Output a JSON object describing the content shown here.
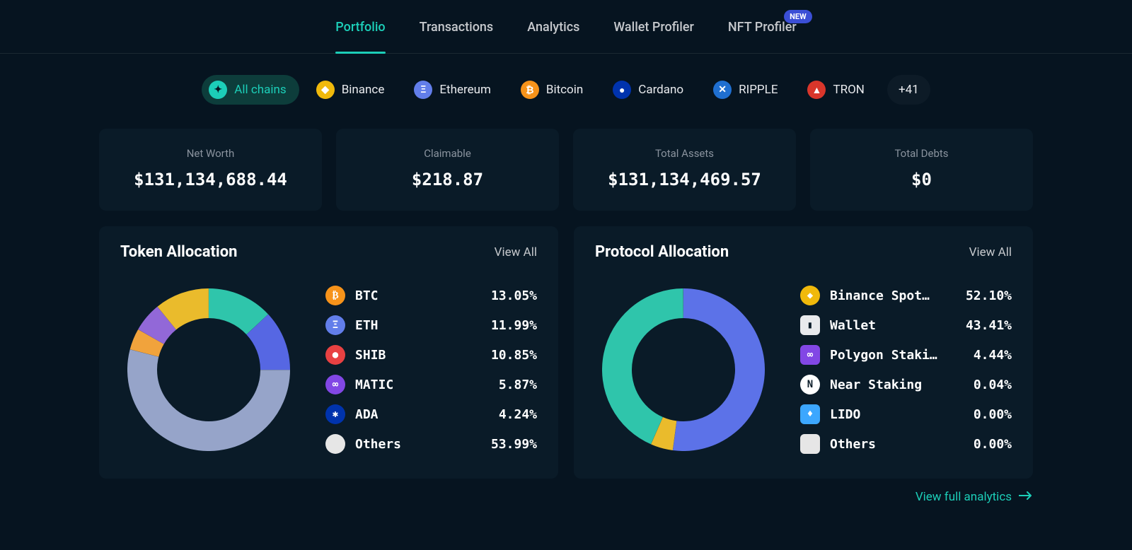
{
  "nav": {
    "tabs": [
      {
        "label": "Portfolio",
        "active": true
      },
      {
        "label": "Transactions",
        "active": false
      },
      {
        "label": "Analytics",
        "active": false
      },
      {
        "label": "Wallet Profiler",
        "active": false
      },
      {
        "label": "NFT Profiler",
        "active": false,
        "badge": "NEW"
      }
    ]
  },
  "chains": {
    "items": [
      {
        "label": "All chains",
        "active": true,
        "icon_bg": "#1cceb8",
        "icon_fg": "#061420",
        "glyph": "✦"
      },
      {
        "label": "Binance",
        "icon_bg": "#f0b90b",
        "icon_fg": "#ffffff",
        "glyph": "◆"
      },
      {
        "label": "Ethereum",
        "icon_bg": "#627eea",
        "icon_fg": "#ffffff",
        "glyph": "Ξ"
      },
      {
        "label": "Bitcoin",
        "icon_bg": "#f7931a",
        "icon_fg": "#ffffff",
        "glyph": "₿"
      },
      {
        "label": "Cardano",
        "icon_bg": "#0033ad",
        "icon_fg": "#ffffff",
        "glyph": "●"
      },
      {
        "label": "RIPPLE",
        "icon_bg": "#1f6fd0",
        "icon_fg": "#ffffff",
        "glyph": "✕"
      },
      {
        "label": "TRON",
        "icon_bg": "#d9362b",
        "icon_fg": "#ffffff",
        "glyph": "▲"
      }
    ],
    "more_label": "+41"
  },
  "stats": [
    {
      "label": "Net Worth",
      "value": "$131,134,688.44"
    },
    {
      "label": "Claimable",
      "value": "$218.87"
    },
    {
      "label": "Total Assets",
      "value": "$131,134,469.57"
    },
    {
      "label": "Total Debts",
      "value": "$0"
    }
  ],
  "token_allocation": {
    "title": "Token Allocation",
    "view_all": "View All",
    "donut": {
      "type": "donut",
      "size": 230,
      "thickness": 42,
      "start_angle": -90,
      "background_color": "#0a1b28",
      "slices": [
        {
          "label": "BTC",
          "value": 13.05,
          "color": "#2fc5ab"
        },
        {
          "label": "ETH",
          "value": 11.99,
          "color": "#5667e3"
        },
        {
          "label": "Others",
          "value": 53.99,
          "color": "#96a4c9"
        },
        {
          "label": "ADA",
          "value": 4.24,
          "color": "#f1a33c"
        },
        {
          "label": "MATIC",
          "value": 5.87,
          "color": "#9268d8"
        },
        {
          "label": "SHIB",
          "value": 10.85,
          "color": "#eabb2c"
        }
      ]
    },
    "legend": [
      {
        "label": "BTC",
        "pct": "13.05%",
        "icon_bg": "#f7931a",
        "icon_fg": "#ffffff",
        "glyph": "₿"
      },
      {
        "label": "ETH",
        "pct": "11.99%",
        "icon_bg": "#627eea",
        "icon_fg": "#ffffff",
        "glyph": "Ξ"
      },
      {
        "label": "SHIB",
        "pct": "10.85%",
        "icon_bg": "#e84142",
        "icon_fg": "#ffffff",
        "glyph": "●"
      },
      {
        "label": "MATIC",
        "pct": "5.87%",
        "icon_bg": "#8247e5",
        "icon_fg": "#ffffff",
        "glyph": "∞"
      },
      {
        "label": "ADA",
        "pct": "4.24%",
        "icon_bg": "#0033ad",
        "icon_fg": "#ffffff",
        "glyph": "✱"
      },
      {
        "label": "Others",
        "pct": "53.99%",
        "icon_bg": "#e6e6e6",
        "icon_fg": "#e6e6e6",
        "glyph": ""
      }
    ]
  },
  "protocol_allocation": {
    "title": "Protocol Allocation",
    "view_all": "View All",
    "donut": {
      "type": "donut",
      "size": 230,
      "thickness": 42,
      "start_angle": -90,
      "background_color": "#0a1b28",
      "slices": [
        {
          "label": "Binance Spot",
          "value": 52.1,
          "color": "#5c72e8"
        },
        {
          "label": "Polygon Staking",
          "value": 4.44,
          "color": "#eabb2c"
        },
        {
          "label": "Wallet",
          "value": 43.41,
          "color": "#2fc5ab"
        },
        {
          "label": "Near Staking",
          "value": 0.04,
          "color": "#96a4c9"
        },
        {
          "label": "LIDO",
          "value": 0.0,
          "color": "#96a4c9"
        },
        {
          "label": "Others",
          "value": 0.0,
          "color": "#96a4c9"
        }
      ]
    },
    "legend": [
      {
        "label": "Binance Spot…",
        "pct": "52.10%",
        "icon_bg": "#f0b90b",
        "icon_fg": "#ffffff",
        "glyph": "◆"
      },
      {
        "label": "Wallet",
        "pct": "43.41%",
        "icon_bg": "#e8eaed",
        "icon_fg": "#0a1b28",
        "glyph": "▮",
        "square": true
      },
      {
        "label": "Polygon Staki…",
        "pct": "4.44%",
        "icon_bg": "#8247e5",
        "icon_fg": "#ffffff",
        "glyph": "∞",
        "square": true
      },
      {
        "label": "Near Staking",
        "pct": "0.04%",
        "icon_bg": "#ffffff",
        "icon_fg": "#0a1b28",
        "glyph": "N"
      },
      {
        "label": "LIDO",
        "pct": "0.00%",
        "icon_bg": "#3ca7ff",
        "icon_fg": "#ffffff",
        "glyph": "♦",
        "square": true
      },
      {
        "label": "Others",
        "pct": "0.00%",
        "icon_bg": "#e6e6e6",
        "icon_fg": "#e6e6e6",
        "glyph": "",
        "square": true
      }
    ]
  },
  "footer": {
    "link_label": "View full analytics"
  }
}
